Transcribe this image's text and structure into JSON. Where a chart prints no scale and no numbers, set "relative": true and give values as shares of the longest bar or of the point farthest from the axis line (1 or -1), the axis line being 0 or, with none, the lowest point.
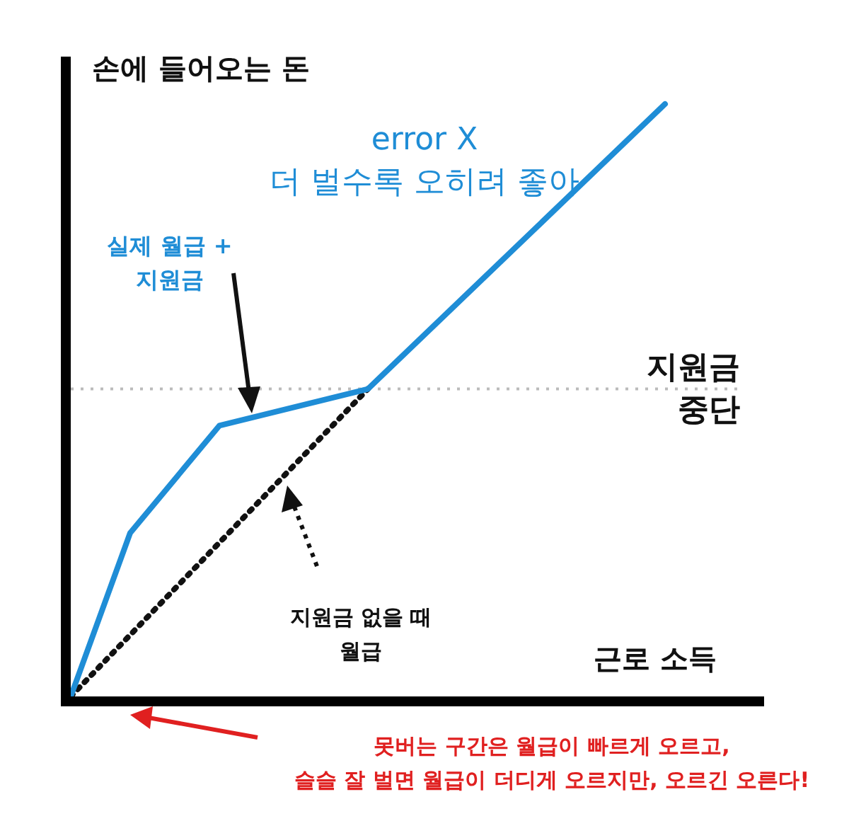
{
  "chart_data": {
    "type": "line",
    "relative": true,
    "ylabel": "손에 들어오는 돈",
    "xlabel": "근로 소득",
    "marker": "none",
    "legend": false,
    "categories": [
      null,
      null,
      null,
      null,
      null,
      null,
      null,
      null,
      null,
      null,
      null,
      null,
      null,
      null,
      null,
      null,
      null,
      null,
      null,
      null,
      null,
      null,
      null,
      null
    ],
    "series": [
      {
        "name": "실제 월급 +\n지원금",
        "color": "#1f8dd6",
        "line_style": "solid",
        "values": [
          0,
          null,
          0.276,
          null,
          null,
          0.457,
          null,
          null,
          null,
          null,
          0.519,
          null,
          null,
          null,
          null,
          null,
          null,
          null,
          null,
          null,
          1,
          null,
          null,
          null
        ]
      },
      {
        "name": "지원금 없을 때\n월급",
        "color": "#111111",
        "line_style": "dotted",
        "values": [
          0,
          null,
          null,
          null,
          null,
          null,
          null,
          null,
          null,
          null,
          0.519,
          null,
          null,
          null,
          null,
          null,
          null,
          null,
          null,
          null,
          null,
          null,
          null,
          null
        ]
      }
    ],
    "ref_lines": [
      {
        "axis": "y",
        "value": 0.519,
        "label": "지원금\n중단",
        "color": "#bbbbbb",
        "line_style": "dotted"
      }
    ],
    "annotations": [
      "error X\n더 벌수록 오히려 좋아",
      "못버는 구간은 월급이 빠르게 오르고,\n슬슬 잘 벌면 월급이 더디게 오르지만, 오르긴 오른다!"
    ]
  }
}
